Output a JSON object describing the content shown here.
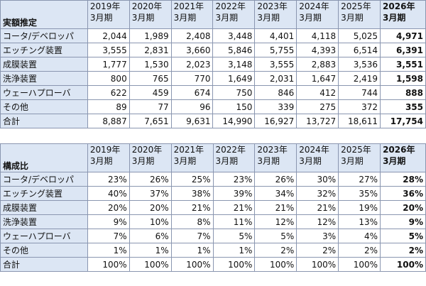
{
  "table1": {
    "title": "実額推定",
    "headers": [
      {
        "year": "2019年",
        "period": "3月期"
      },
      {
        "year": "2020年",
        "period": "3月期"
      },
      {
        "year": "2021年",
        "period": "3月期"
      },
      {
        "year": "2022年",
        "period": "3月期"
      },
      {
        "year": "2023年",
        "period": "3月期"
      },
      {
        "year": "2024年",
        "period": "3月期"
      },
      {
        "year": "2025年",
        "period": "3月期"
      },
      {
        "year": "2026年",
        "period": "3月期"
      }
    ],
    "rows": [
      {
        "label": "コータ/デベロッパ",
        "values": [
          "2,044",
          "1,989",
          "2,408",
          "3,448",
          "4,401",
          "4,118",
          "5,025",
          "4,971"
        ]
      },
      {
        "label": "エッチング装置",
        "values": [
          "3,555",
          "2,831",
          "3,660",
          "5,846",
          "5,755",
          "4,393",
          "6,514",
          "6,391"
        ]
      },
      {
        "label": "成膜装置",
        "values": [
          "1,777",
          "1,530",
          "2,023",
          "3,148",
          "3,555",
          "2,883",
          "3,536",
          "3,551"
        ]
      },
      {
        "label": "洗浄装置",
        "values": [
          "800",
          "765",
          "770",
          "1,649",
          "2,031",
          "1,647",
          "2,419",
          "1,598"
        ]
      },
      {
        "label": "ウェーハプローバ",
        "values": [
          "622",
          "459",
          "674",
          "750",
          "846",
          "412",
          "744",
          "888"
        ]
      },
      {
        "label": "その他",
        "values": [
          "89",
          "77",
          "96",
          "150",
          "339",
          "275",
          "372",
          "355"
        ]
      },
      {
        "label": "合計",
        "values": [
          "8,887",
          "7,651",
          "9,631",
          "14,990",
          "16,927",
          "13,727",
          "18,611",
          "17,754"
        ]
      }
    ]
  },
  "table2": {
    "title": "構成比",
    "headers": [
      {
        "year": "2019年",
        "period": "3月期"
      },
      {
        "year": "2020年",
        "period": "3月期"
      },
      {
        "year": "2021年",
        "period": "3月期"
      },
      {
        "year": "2022年",
        "period": "3月期"
      },
      {
        "year": "2023年",
        "period": "3月期"
      },
      {
        "year": "2024年",
        "period": "3月期"
      },
      {
        "year": "2025年",
        "period": "3月期"
      },
      {
        "year": "2026年",
        "period": "3月期"
      }
    ],
    "rows": [
      {
        "label": "コータ/デベロッパ",
        "values": [
          "23%",
          "26%",
          "25%",
          "23%",
          "26%",
          "30%",
          "27%",
          "28%"
        ]
      },
      {
        "label": "エッチング装置",
        "values": [
          "40%",
          "37%",
          "38%",
          "39%",
          "34%",
          "32%",
          "35%",
          "36%"
        ]
      },
      {
        "label": "成膜装置",
        "values": [
          "20%",
          "20%",
          "21%",
          "21%",
          "21%",
          "21%",
          "19%",
          "20%"
        ]
      },
      {
        "label": "洗浄装置",
        "values": [
          "9%",
          "10%",
          "8%",
          "11%",
          "12%",
          "12%",
          "13%",
          "9%"
        ]
      },
      {
        "label": "ウェーハプローバ",
        "values": [
          "7%",
          "6%",
          "7%",
          "5%",
          "5%",
          "3%",
          "4%",
          "5%"
        ]
      },
      {
        "label": "その他",
        "values": [
          "1%",
          "1%",
          "1%",
          "1%",
          "2%",
          "2%",
          "2%",
          "2%"
        ]
      },
      {
        "label": "合計",
        "values": [
          "100%",
          "100%",
          "100%",
          "100%",
          "100%",
          "100%",
          "100%",
          "100%"
        ]
      }
    ]
  }
}
